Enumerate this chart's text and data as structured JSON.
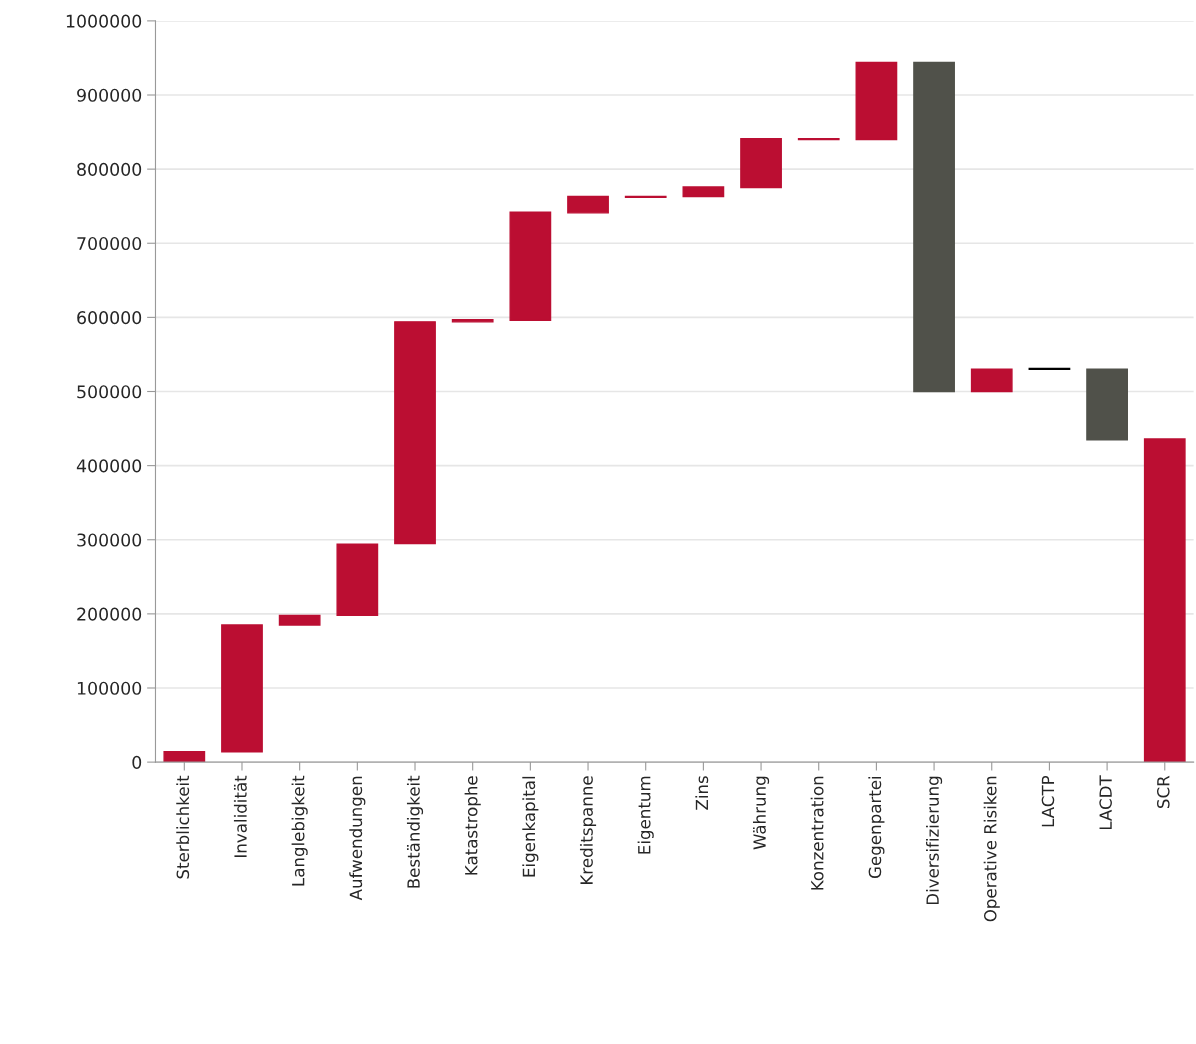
{
  "chart_data": {
    "type": "bar",
    "categories": [
      "Sterblichkeit",
      "Invalidität",
      "Langlebigkeit",
      "Aufwendungen",
      "Beständigkeit",
      "Katastrophe",
      "Eigenkapital",
      "Kreditspanne",
      "Eigentum",
      "Zins",
      "Währung",
      "Konzentration",
      "Gegenpartei",
      "Diversifizierung",
      "Operative Risiken",
      "LACTP",
      "LACDT",
      "SCR"
    ],
    "base": [
      0,
      14000,
      185000,
      198000,
      295000,
      594000,
      596000,
      741000,
      762000,
      763000,
      775000,
      840000,
      840000,
      944000,
      500000,
      530000,
      530000,
      0
    ],
    "values": [
      14000,
      171000,
      13000,
      96000,
      299000,
      3000,
      146000,
      22000,
      1000,
      13000,
      66000,
      1000,
      104000,
      -444000,
      30000,
      1000,
      -95000,
      436000
    ],
    "colors": [
      "#bb0e32",
      "#bb0e32",
      "#bb0e32",
      "#bb0e32",
      "#bb0e32",
      "#bb0e32",
      "#bb0e32",
      "#bb0e32",
      "#bb0e32",
      "#bb0e32",
      "#bb0e32",
      "#bb0e32",
      "#bb0e32",
      "#50514a",
      "#bb0e32",
      "#000000",
      "#50514a",
      "#bb0e32"
    ],
    "ylim": [
      0,
      1000000
    ],
    "yticks": [
      0,
      100000,
      200000,
      300000,
      400000,
      500000,
      600000,
      700000,
      800000,
      900000,
      1000000
    ],
    "grid": "y",
    "legend": false
  }
}
